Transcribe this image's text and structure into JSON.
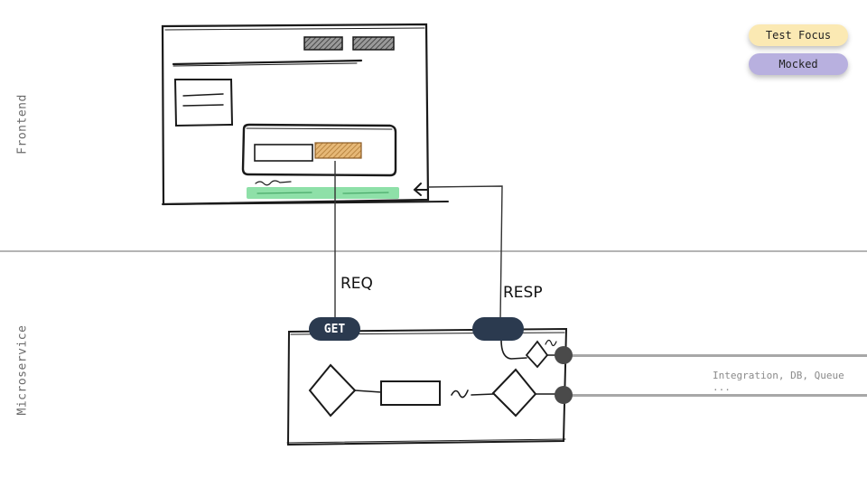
{
  "sections": {
    "frontend": "Frontend",
    "microservice": "Microservice"
  },
  "legend": {
    "test_focus": {
      "label": "Test Focus",
      "color": "#fbe9b3"
    },
    "mocked": {
      "label": "Mocked",
      "color": "#b8b0df"
    }
  },
  "flow": {
    "req_label": "REQ",
    "resp_label": "RESP",
    "get_badge": "GET",
    "resp_badge": ""
  },
  "integrations_note": "Integration, DB, Queue ...",
  "colors": {
    "badge": "#2b3a4f",
    "button_hatch": "#d6a35c",
    "progress_bar": "#8ee0a8",
    "connector_dot": "#4a4a4a",
    "divider": "#b4b4b4"
  }
}
